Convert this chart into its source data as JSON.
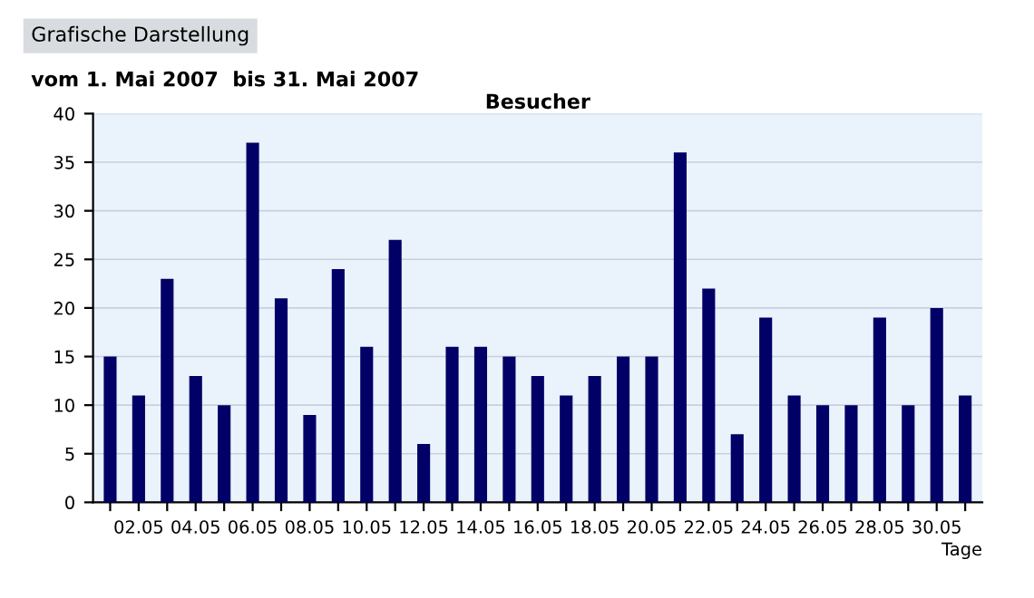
{
  "chart_data": {
    "type": "bar",
    "title": "Besucher",
    "subtitle": "vom 1. Mai 2007  bis 31. Mai 2007",
    "annotations": [
      "Grafische Darstellung"
    ],
    "xlabel": "Tage",
    "categories": [
      null,
      "02.05",
      null,
      "04.05",
      null,
      "06.05",
      null,
      "08.05",
      null,
      "10.05",
      null,
      "12.05",
      null,
      "14.05",
      null,
      "16.05",
      null,
      "18.05",
      null,
      "20.05",
      null,
      "22.05",
      null,
      "24.05",
      null,
      "26.05",
      null,
      "28.05",
      null,
      "30.05",
      null
    ],
    "values": [
      15,
      11,
      23,
      13,
      10,
      37,
      21,
      9,
      24,
      16,
      27,
      6,
      16,
      16,
      15,
      13,
      11,
      13,
      15,
      15,
      36,
      22,
      7,
      19,
      11,
      10,
      10,
      19,
      10,
      20,
      11
    ],
    "color": "#000066",
    "ylim": [
      0,
      40
    ],
    "yticks": [
      0,
      5,
      10,
      15,
      20,
      25,
      30,
      35,
      40
    ],
    "grid": "y"
  }
}
